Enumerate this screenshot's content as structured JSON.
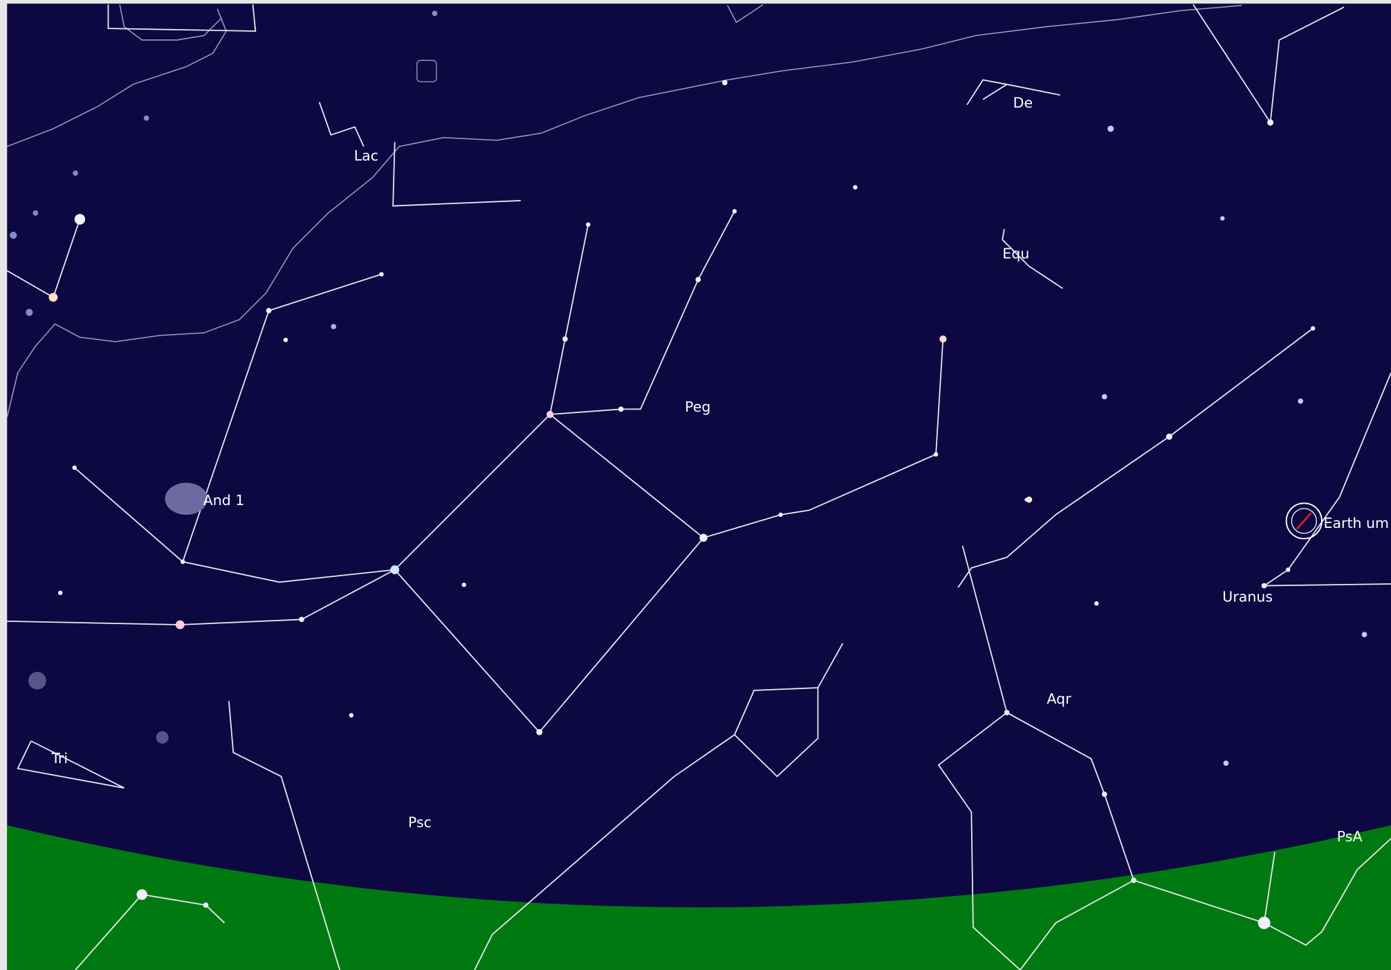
{
  "labels": {
    "lac": "Lac",
    "del": "De",
    "equ": "Equ",
    "peg": "Peg",
    "and": "And 1",
    "earth": "Earth um",
    "uranus": "Uranus",
    "aqr": "Aqr",
    "tri": "Tri",
    "psc": "Psc",
    "psa": "PsA"
  }
}
